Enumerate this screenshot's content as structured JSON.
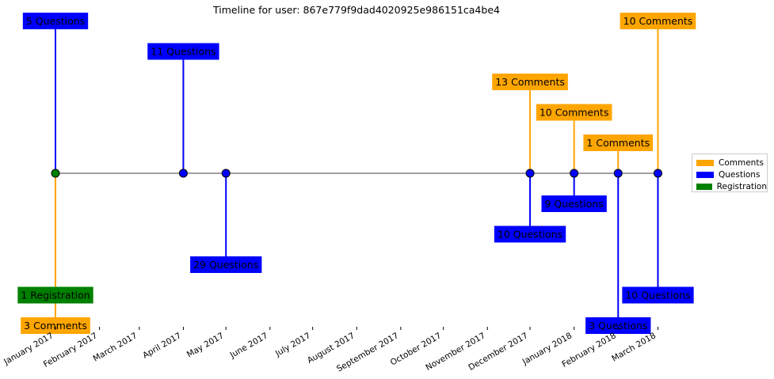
{
  "chart_data": {
    "type": "timeline",
    "title": "Timeline for user: 867e779f9dad4020925e986151ca4be4",
    "x_ticks": [
      "January 2017",
      "February 2017",
      "March 2017",
      "April 2017",
      "May 2017",
      "June 2017",
      "July 2017",
      "August 2017",
      "September 2017",
      "October 2017",
      "November 2017",
      "December 2017",
      "January 2018",
      "February 2018",
      "March 2018"
    ],
    "legend": {
      "placement": "right",
      "entries": [
        {
          "name": "Comments",
          "color": "#ffa500"
        },
        {
          "name": "Questions",
          "color": "#0000ff"
        },
        {
          "name": "Registration",
          "color": "#008000"
        }
      ]
    },
    "events": [
      {
        "date": "2017-01-01",
        "category": "Questions",
        "label": "5 Questions",
        "stem_level": 5
      },
      {
        "date": "2017-01-01",
        "category": "Registration",
        "label": "1 Registration",
        "stem_level": -4
      },
      {
        "date": "2017-01-01",
        "category": "Comments",
        "label": "3 Comments",
        "stem_level": -5
      },
      {
        "date": "2017-04-01",
        "category": "Questions",
        "label": "11 Questions",
        "stem_level": 4
      },
      {
        "date": "2017-05-01",
        "category": "Questions",
        "label": "29 Questions",
        "stem_level": -3
      },
      {
        "date": "2017-12-01",
        "category": "Comments",
        "label": "13 Comments",
        "stem_level": 3
      },
      {
        "date": "2017-12-01",
        "category": "Questions",
        "label": "10 Questions",
        "stem_level": -2
      },
      {
        "date": "2018-01-01",
        "category": "Comments",
        "label": "10 Comments",
        "stem_level": 2
      },
      {
        "date": "2018-01-01",
        "category": "Questions",
        "label": "9 Questions",
        "stem_level": -1
      },
      {
        "date": "2018-02-01",
        "category": "Comments",
        "label": "1 Comments",
        "stem_level": 1
      },
      {
        "date": "2018-02-01",
        "category": "Questions",
        "label": "3 Questions",
        "stem_level": -5
      },
      {
        "date": "2018-03-01",
        "category": "Comments",
        "label": "10 Comments",
        "stem_level": 5
      },
      {
        "date": "2018-03-01",
        "category": "Questions",
        "label": "10 Questions",
        "stem_level": -4
      }
    ],
    "points": [
      {
        "date": "2017-01-01",
        "color": "#008000"
      },
      {
        "date": "2017-04-01",
        "color": "#0000ff"
      },
      {
        "date": "2017-05-01",
        "color": "#0000ff"
      },
      {
        "date": "2017-12-01",
        "color": "#0000ff"
      },
      {
        "date": "2018-01-01",
        "color": "#0000ff"
      },
      {
        "date": "2018-02-01",
        "color": "#0000ff"
      },
      {
        "date": "2018-03-01",
        "color": "#0000ff"
      }
    ],
    "axis_line_color": "#808080",
    "grid": false
  }
}
